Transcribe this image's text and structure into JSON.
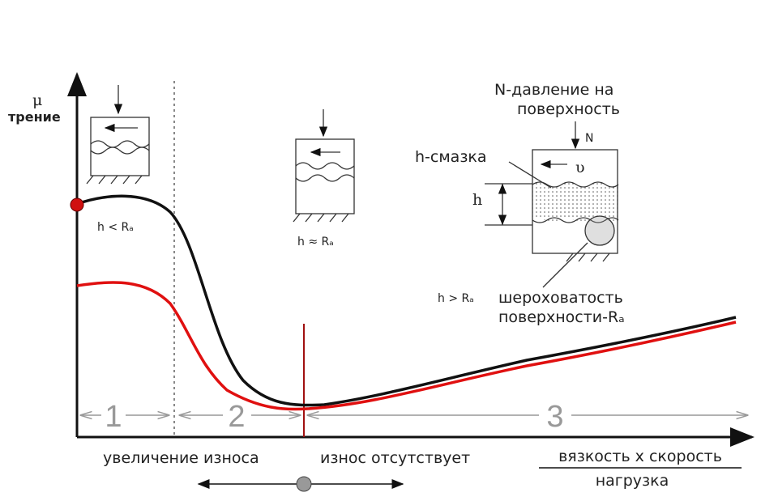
{
  "axis": {
    "y_symbol": "μ",
    "y_label": "трение"
  },
  "regimes": [
    {
      "number": "1",
      "film": "h < Rₐ"
    },
    {
      "number": "2",
      "film": "h ≈ Rₐ"
    },
    {
      "number": "3",
      "film": "h > Rₐ"
    }
  ],
  "detail": {
    "pressure_1": "N-давление на",
    "pressure_2": "поверхность",
    "force": "N",
    "velocity": "υ",
    "lubricant": "h-смазка",
    "gap": "h",
    "roughness_1": "шероховатость",
    "roughness_2": "поверхности-Rₐ"
  },
  "wear": {
    "left": "увеличение износа",
    "right": "износ отсутствует"
  },
  "x_axis": {
    "numerator": "вязкость x скорость",
    "denominator": "нагрузка"
  }
}
